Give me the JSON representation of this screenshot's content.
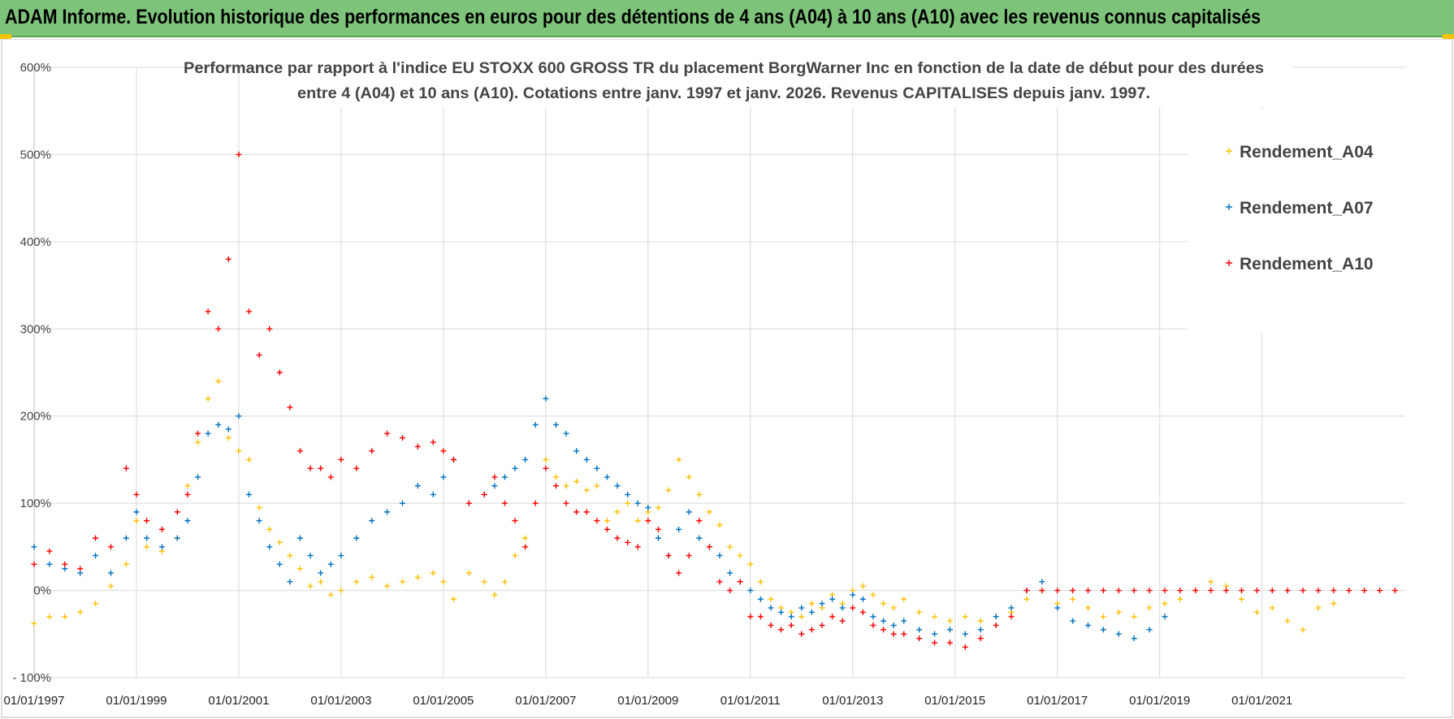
{
  "header": {
    "title": "ADAM Informe. Evolution historique des performances en euros pour des détentions de 4 ans (A04) à 10 ans (A10) avec les revenus connus capitalisés",
    "accent_color": "#7dc47a"
  },
  "chart_data": {
    "type": "scatter",
    "title_line1": "Performance par rapport à l'indice EU STOXX 600 GROSS TR  du placement BorgWarner Inc en fonction de la date de début pour des durées",
    "title_line2": "entre 4 (A04) et 10 ans (A10).  Cotations entre janv. 1997 et janv. 2026. Revenus CAPITALISES depuis janv. 1997.",
    "xlabel": "",
    "ylabel": "",
    "xlim": [
      1997.0,
      2023.8
    ],
    "ylim": [
      -100,
      600
    ],
    "y_ticks": [
      -100,
      0,
      100,
      200,
      300,
      400,
      500,
      600
    ],
    "y_tick_labels": [
      "- 100%",
      "0%",
      "100%",
      "200%",
      "300%",
      "400%",
      "500%",
      "600%"
    ],
    "x_ticks": [
      1997,
      1999,
      2001,
      2003,
      2005,
      2007,
      2009,
      2011,
      2013,
      2015,
      2017,
      2019,
      2021
    ],
    "x_tick_labels": [
      "01/01/1997",
      "01/01/1999",
      "01/01/2001",
      "01/01/2003",
      "01/01/2005",
      "01/01/2007",
      "01/01/2009",
      "01/01/2011",
      "01/01/2013",
      "01/01/2015",
      "01/01/2017",
      "01/01/2019",
      "01/01/2021"
    ],
    "grid": true,
    "legend_position": "top-right",
    "marker": "+",
    "series": [
      {
        "name": "Rendement_A04",
        "color": "#ffc000",
        "x": [
          1997.0,
          1997.3,
          1997.6,
          1997.9,
          1998.2,
          1998.5,
          1998.8,
          1999.0,
          1999.2,
          1999.5,
          1999.8,
          2000.0,
          2000.2,
          2000.4,
          2000.6,
          2000.8,
          2001.0,
          2001.2,
          2001.4,
          2001.6,
          2001.8,
          2002.0,
          2002.2,
          2002.4,
          2002.6,
          2002.8,
          2003.0,
          2003.3,
          2003.6,
          2003.9,
          2004.2,
          2004.5,
          2004.8,
          2005.0,
          2005.2,
          2005.5,
          2005.8,
          2006.0,
          2006.2,
          2006.4,
          2006.6,
          2006.8,
          2007.0,
          2007.2,
          2007.4,
          2007.6,
          2007.8,
          2008.0,
          2008.2,
          2008.4,
          2008.6,
          2008.8,
          2009.0,
          2009.2,
          2009.4,
          2009.6,
          2009.8,
          2010.0,
          2010.2,
          2010.4,
          2010.6,
          2010.8,
          2011.0,
          2011.2,
          2011.4,
          2011.6,
          2011.8,
          2012.0,
          2012.2,
          2012.4,
          2012.6,
          2012.8,
          2013.0,
          2013.2,
          2013.4,
          2013.6,
          2013.8,
          2014.0,
          2014.3,
          2014.6,
          2014.9,
          2015.2,
          2015.5,
          2015.8,
          2016.1,
          2016.4,
          2016.7,
          2017.0,
          2017.3,
          2017.6,
          2017.9,
          2018.2,
          2018.5,
          2018.8,
          2019.1,
          2019.4,
          2019.7,
          2020.0,
          2020.3,
          2020.6,
          2020.9,
          2021.2,
          2021.5,
          2021.8,
          2022.1,
          2022.4
        ],
        "y": [
          -38,
          -30,
          -30,
          -25,
          -15,
          5,
          30,
          80,
          50,
          45,
          60,
          120,
          170,
          220,
          240,
          175,
          160,
          150,
          95,
          70,
          55,
          40,
          25,
          5,
          10,
          -5,
          0,
          10,
          15,
          5,
          10,
          15,
          20,
          10,
          -10,
          20,
          10,
          -5,
          10,
          40,
          60,
          100,
          150,
          130,
          120,
          125,
          115,
          120,
          80,
          90,
          100,
          80,
          90,
          95,
          115,
          150,
          130,
          110,
          90,
          75,
          50,
          40,
          30,
          10,
          -10,
          -20,
          -25,
          -30,
          -15,
          -20,
          -5,
          -15,
          0,
          5,
          -5,
          -15,
          -20,
          -10,
          -25,
          -30,
          -35,
          -30,
          -35,
          -30,
          -25,
          -10,
          0,
          -15,
          -10,
          -20,
          -30,
          -25,
          -30,
          -20,
          -15,
          -10,
          0,
          10,
          5,
          -10,
          -25,
          -20,
          -35,
          -45,
          -20,
          -15
        ]
      },
      {
        "name": "Rendement_A07",
        "color": "#0070c0",
        "x": [
          1997.0,
          1997.3,
          1997.6,
          1997.9,
          1998.2,
          1998.5,
          1998.8,
          1999.0,
          1999.2,
          1999.5,
          1999.8,
          2000.0,
          2000.2,
          2000.4,
          2000.6,
          2000.8,
          2001.0,
          2001.2,
          2001.4,
          2001.6,
          2001.8,
          2002.0,
          2002.2,
          2002.4,
          2002.6,
          2002.8,
          2003.0,
          2003.3,
          2003.6,
          2003.9,
          2004.2,
          2004.5,
          2004.8,
          2005.0,
          2005.2,
          2005.5,
          2005.8,
          2006.0,
          2006.2,
          2006.4,
          2006.6,
          2006.8,
          2007.0,
          2007.2,
          2007.4,
          2007.6,
          2007.8,
          2008.0,
          2008.2,
          2008.4,
          2008.6,
          2008.8,
          2009.0,
          2009.2,
          2009.4,
          2009.6,
          2009.8,
          2010.0,
          2010.2,
          2010.4,
          2010.6,
          2010.8,
          2011.0,
          2011.2,
          2011.4,
          2011.6,
          2011.8,
          2012.0,
          2012.2,
          2012.4,
          2012.6,
          2012.8,
          2013.0,
          2013.2,
          2013.4,
          2013.6,
          2013.8,
          2014.0,
          2014.3,
          2014.6,
          2014.9,
          2015.2,
          2015.5,
          2015.8,
          2016.1,
          2016.4,
          2016.7,
          2017.0,
          2017.3,
          2017.6,
          2017.9,
          2018.2,
          2018.5,
          2018.8,
          2019.1
        ],
        "y": [
          50,
          30,
          25,
          20,
          40,
          20,
          60,
          90,
          60,
          50,
          60,
          80,
          130,
          180,
          190,
          185,
          200,
          110,
          80,
          50,
          30,
          10,
          60,
          40,
          20,
          30,
          40,
          60,
          80,
          90,
          100,
          120,
          110,
          130,
          150,
          100,
          110,
          120,
          130,
          140,
          150,
          190,
          220,
          190,
          180,
          160,
          150,
          140,
          130,
          120,
          110,
          100,
          95,
          60,
          40,
          70,
          90,
          60,
          50,
          40,
          20,
          10,
          0,
          -10,
          -20,
          -25,
          -30,
          -20,
          -25,
          -15,
          -10,
          -20,
          -5,
          -10,
          -30,
          -35,
          -40,
          -35,
          -45,
          -50,
          -45,
          -50,
          -45,
          -30,
          -20,
          0,
          10,
          -20,
          -35,
          -40,
          -45,
          -50,
          -55,
          -45,
          -30
        ]
      },
      {
        "name": "Rendement_A10",
        "color": "#ff0000",
        "x": [
          1997.0,
          1997.3,
          1997.6,
          1997.9,
          1998.2,
          1998.5,
          1998.8,
          1999.0,
          1999.2,
          1999.5,
          1999.8,
          2000.0,
          2000.2,
          2000.4,
          2000.6,
          2000.8,
          2001.0,
          2001.2,
          2001.4,
          2001.6,
          2001.8,
          2002.0,
          2002.2,
          2002.4,
          2002.6,
          2002.8,
          2003.0,
          2003.3,
          2003.6,
          2003.9,
          2004.2,
          2004.5,
          2004.8,
          2005.0,
          2005.2,
          2005.5,
          2005.8,
          2006.0,
          2006.2,
          2006.4,
          2006.6,
          2006.8,
          2007.0,
          2007.2,
          2007.4,
          2007.6,
          2007.8,
          2008.0,
          2008.2,
          2008.4,
          2008.6,
          2008.8,
          2009.0,
          2009.2,
          2009.4,
          2009.6,
          2009.8,
          2010.0,
          2010.2,
          2010.4,
          2010.6,
          2010.8,
          2011.0,
          2011.2,
          2011.4,
          2011.6,
          2011.8,
          2012.0,
          2012.2,
          2012.4,
          2012.6,
          2012.8,
          2013.0,
          2013.2,
          2013.4,
          2013.6,
          2013.8,
          2014.0,
          2014.3,
          2014.6,
          2014.9,
          2015.2,
          2015.5,
          2015.8,
          2016.1,
          2016.4,
          2016.7,
          2017.0,
          2017.3,
          2017.6,
          2017.9,
          2018.2,
          2018.5,
          2018.8,
          2019.1,
          2019.4,
          2019.7,
          2020.0,
          2020.3,
          2020.6,
          2020.9,
          2021.2,
          2021.5,
          2021.8,
          2022.1,
          2022.4,
          2022.7,
          2023.0,
          2023.3,
          2023.6
        ],
        "y": [
          30,
          45,
          30,
          25,
          60,
          50,
          140,
          110,
          80,
          70,
          90,
          110,
          180,
          320,
          300,
          380,
          500,
          320,
          270,
          300,
          250,
          210,
          160,
          140,
          140,
          130,
          150,
          140,
          160,
          180,
          175,
          165,
          170,
          160,
          150,
          100,
          110,
          130,
          100,
          80,
          50,
          100,
          140,
          120,
          100,
          90,
          90,
          80,
          70,
          60,
          55,
          50,
          80,
          70,
          40,
          20,
          40,
          80,
          50,
          10,
          0,
          10,
          -30,
          -30,
          -40,
          -45,
          -40,
          -50,
          -45,
          -40,
          -30,
          -35,
          -20,
          -25,
          -40,
          -45,
          -50,
          -50,
          -55,
          -60,
          -60,
          -65,
          -55,
          -40,
          -30,
          0,
          0,
          0,
          0,
          0,
          0,
          0,
          0,
          0,
          0,
          0,
          0,
          0,
          0,
          0,
          0,
          0,
          0,
          0,
          0,
          0,
          0,
          0,
          0,
          0
        ]
      }
    ]
  }
}
